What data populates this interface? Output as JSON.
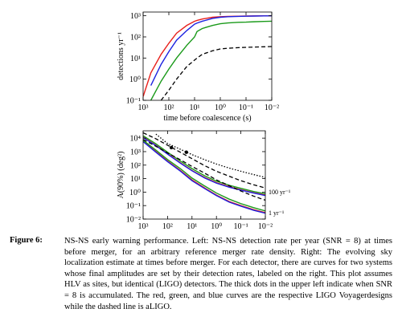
{
  "chart_data": [
    {
      "type": "line",
      "xlog": true,
      "ylog": true,
      "xlabel": "time before coalescence (s)",
      "ylabel": "detections yr⁻¹",
      "x": [
        1000,
        500,
        200,
        100,
        50,
        20,
        10,
        8,
        5,
        2,
        1,
        0.5,
        0.2,
        0.1,
        0.05,
        0.02,
        0.01
      ],
      "xlim": [
        1000,
        0.01
      ],
      "xticks": [
        {
          "value": 1000,
          "label": "10³"
        },
        {
          "value": 100,
          "label": "10²"
        },
        {
          "value": 10,
          "label": "10¹"
        },
        {
          "value": 1,
          "label": "10⁰"
        },
        {
          "value": 0.1,
          "label": "10⁻¹"
        },
        {
          "value": 0.01,
          "label": "10⁻²"
        }
      ],
      "ylim": [
        0.1,
        1500
      ],
      "yticks": [
        {
          "value": 0.1,
          "label": "10⁻¹"
        },
        {
          "value": 1,
          "label": "10⁰"
        },
        {
          "value": 10,
          "label": "10¹"
        },
        {
          "value": 100,
          "label": "10²"
        },
        {
          "value": 1000,
          "label": "10³"
        }
      ],
      "series": [
        {
          "color": "#e8201c",
          "dash": "solid",
          "values": [
            0.15,
            2,
            15,
            50,
            150,
            350,
            550,
            600,
            700,
            850,
            900,
            930,
            950,
            970,
            980,
            990,
            1000
          ]
        },
        {
          "color": "#1c22e0",
          "dash": "solid",
          "values": [
            null,
            0.5,
            5,
            20,
            70,
            200,
            400,
            450,
            550,
            750,
            850,
            900,
            930,
            950,
            970,
            985,
            1000
          ]
        },
        {
          "color": "#1a9a1a",
          "dash": "solid",
          "values": [
            null,
            0.1,
            0.8,
            3,
            10,
            40,
            100,
            180,
            250,
            350,
            420,
            460,
            490,
            500,
            520,
            540,
            550
          ]
        },
        {
          "color": "#000000",
          "dash": "dashed",
          "values": [
            null,
            null,
            0.1,
            0.3,
            1,
            4,
            8,
            10,
            15,
            22,
            27,
            29,
            31,
            32,
            33,
            34,
            35
          ]
        }
      ]
    },
    {
      "type": "line",
      "xlog": true,
      "ylog": true,
      "xlabel": "time before coalescence (s)",
      "ylabel": "A(90%) (deg²)",
      "x": [
        1000,
        300,
        100,
        30,
        10,
        3,
        1,
        0.3,
        0.1,
        0.03,
        0.01
      ],
      "xlim": [
        1000,
        0.01
      ],
      "xticks": [
        {
          "value": 1000,
          "label": "10³"
        },
        {
          "value": 100,
          "label": "10²"
        },
        {
          "value": 10,
          "label": "10¹"
        },
        {
          "value": 1,
          "label": "10⁰"
        },
        {
          "value": 0.1,
          "label": "10⁻¹"
        },
        {
          "value": 0.01,
          "label": "10⁻²"
        }
      ],
      "ylim": [
        0.01,
        35000
      ],
      "yticks": [
        {
          "value": 0.01,
          "label": "10⁻²"
        },
        {
          "value": 0.1,
          "label": "10⁻¹"
        },
        {
          "value": 1,
          "label": "10⁰"
        },
        {
          "value": 10,
          "label": "10¹"
        },
        {
          "value": 100,
          "label": "10²"
        },
        {
          "value": 1000,
          "label": "10³"
        },
        {
          "value": 10000,
          "label": "10⁴"
        }
      ],
      "annotations": [
        "100 yr⁻¹",
        "1 yr⁻¹"
      ],
      "series": [
        {
          "color": "#e8201c",
          "dash": "solid",
          "values": [
            12000,
            3000,
            700,
            150,
            40,
            12,
            5,
            2.5,
            1.5,
            0.9,
            0.6
          ]
        },
        {
          "color": "#1c22e0",
          "dash": "solid",
          "values": [
            11000,
            2800,
            650,
            140,
            38,
            11,
            4.6,
            2.3,
            1.4,
            0.85,
            0.55
          ]
        },
        {
          "color": "#1a9a1a",
          "dash": "solid",
          "values": [
            15000,
            3800,
            900,
            200,
            55,
            16,
            6.5,
            3.2,
            1.9,
            1.1,
            0.75
          ]
        },
        {
          "color": "#000000",
          "dash": "dashed",
          "values": [
            25000,
            9000,
            3000,
            900,
            300,
            90,
            35,
            15,
            7,
            3.5,
            2
          ]
        },
        {
          "color": "#e8201c",
          "dash": "solid",
          "values": [
            6000,
            1000,
            200,
            40,
            8,
            2,
            0.6,
            0.2,
            0.1,
            0.05,
            0.03
          ]
        },
        {
          "color": "#1c22e0",
          "dash": "solid",
          "values": [
            5500,
            900,
            180,
            36,
            7,
            1.8,
            0.55,
            0.18,
            0.09,
            0.045,
            0.027
          ]
        },
        {
          "color": "#1a9a1a",
          "dash": "solid",
          "values": [
            7000,
            1300,
            260,
            55,
            11,
            2.8,
            0.85,
            0.3,
            0.14,
            0.07,
            0.04
          ]
        },
        {
          "color": "#000000",
          "dash": "dashed",
          "values": [
            8000,
            2500,
            800,
            250,
            80,
            25,
            8,
            3,
            1.2,
            0.5,
            0.25
          ]
        },
        {
          "color": "#000000",
          "dash": "dotted",
          "values": [
            null,
            20000,
            4000,
            1500,
            600,
            250,
            120,
            60,
            35,
            20,
            12
          ]
        }
      ],
      "dots": {
        "x": [
          70,
          17
        ],
        "values": [
          2000,
          900
        ]
      }
    }
  ],
  "caption": {
    "label": "Figure 6:",
    "text": "NS-NS early warning performance. Left: NS-NS detection rate per year (SNR = 8) at times before merger, for an arbitrary reference merger rate density. Right: The evolving sky localization estimate at times before merger. For each detector, there are curves for two systems whose final amplitudes are set by their detection rates, labeled on the right. This plot assumes HLV as sites, but identical (LIGO) detectors. The thick dots in the upper left indicate when SNR = 8 is accumulated. The red, green, and blue curves are the respective LIGO Voyagerdesigns while the dashed line is aLIGO."
  }
}
